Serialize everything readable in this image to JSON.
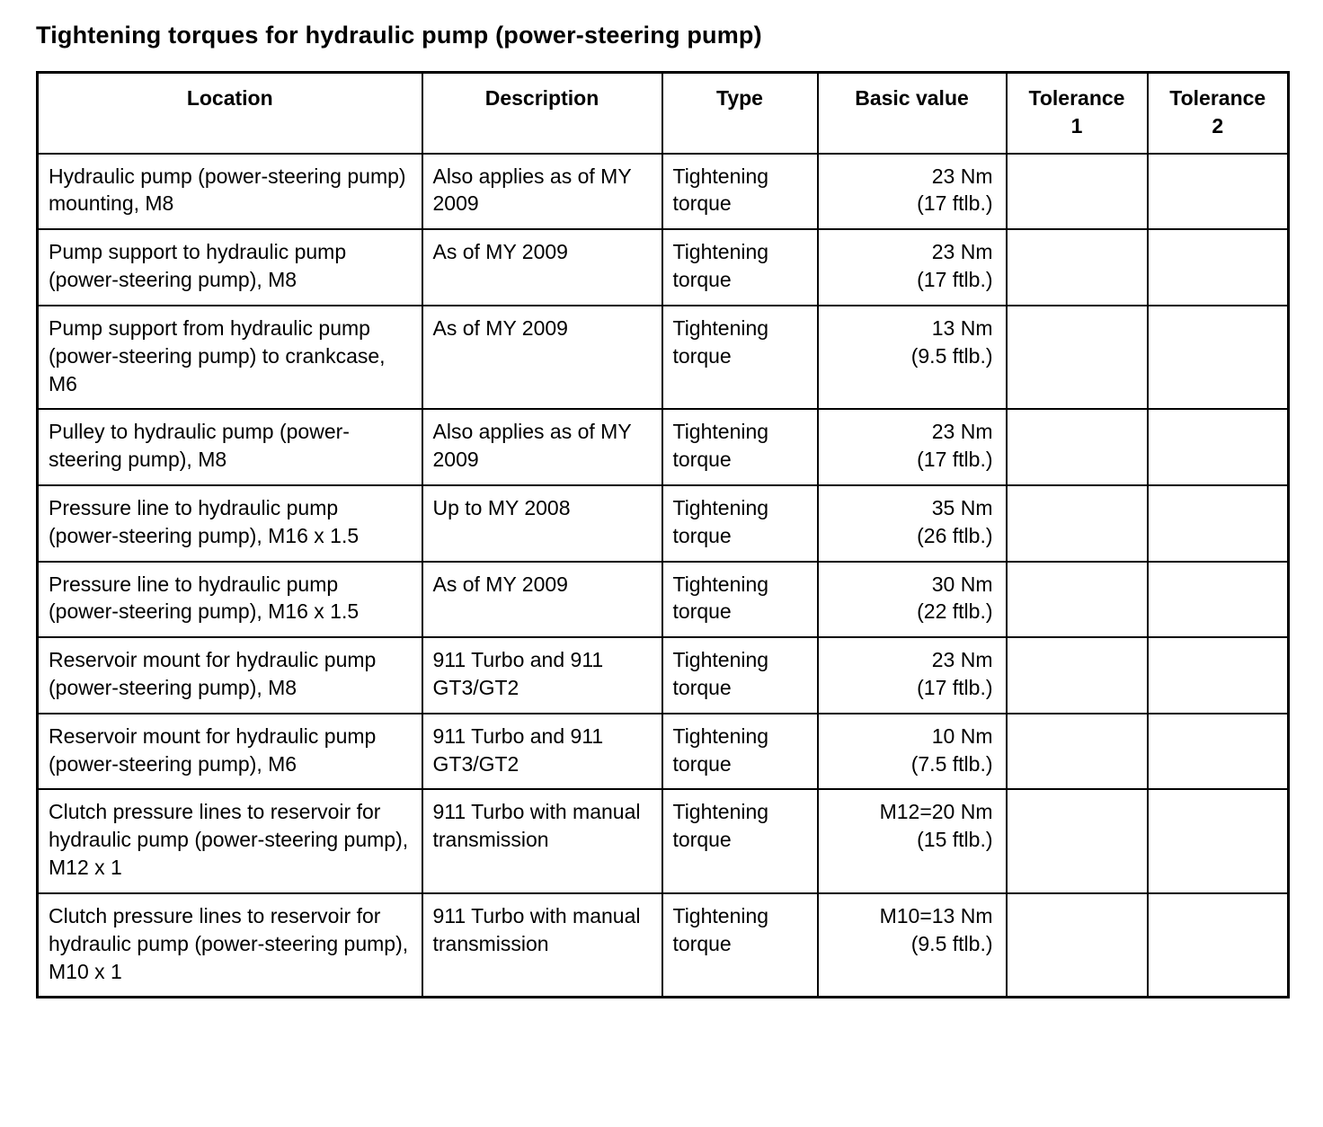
{
  "page": {
    "title": "Tightening torques for hydraulic pump (power-steering pump)"
  },
  "table": {
    "headers": [
      "Location",
      "Description",
      "Type",
      "Basic value",
      "Tolerance\n1",
      "Tolerance\n2"
    ],
    "rows": [
      {
        "location": "Hydraulic pump (power-steering pump) mounting, M8",
        "description": "Also applies as of MY 2009",
        "type": "Tightening torque",
        "basic_value": "23 Nm\n(17 ftlb.)",
        "tolerance1": "",
        "tolerance2": ""
      },
      {
        "location": "Pump support to hydraulic pump (power-steering pump), M8",
        "description": "As of MY 2009",
        "type": "Tightening torque",
        "basic_value": "23 Nm\n(17 ftlb.)",
        "tolerance1": "",
        "tolerance2": ""
      },
      {
        "location": "Pump support from hydraulic pump (power-steering pump) to crankcase, M6",
        "description": "As of MY 2009",
        "type": "Tightening torque",
        "basic_value": "13 Nm\n(9.5 ftlb.)",
        "tolerance1": "",
        "tolerance2": ""
      },
      {
        "location": "Pulley to hydraulic pump (power-steering pump), M8",
        "description": "Also applies as of MY 2009",
        "type": "Tightening torque",
        "basic_value": "23 Nm\n(17 ftlb.)",
        "tolerance1": "",
        "tolerance2": ""
      },
      {
        "location": "Pressure line to hydraulic pump (power-steering pump), M16 x 1.5",
        "description": "Up to MY 2008",
        "type": "Tightening torque",
        "basic_value": "35 Nm\n(26 ftlb.)",
        "tolerance1": "",
        "tolerance2": ""
      },
      {
        "location": "Pressure line to hydraulic pump (power-steering pump), M16 x 1.5",
        "description": "As of MY 2009",
        "type": "Tightening torque",
        "basic_value": "30 Nm\n(22 ftlb.)",
        "tolerance1": "",
        "tolerance2": ""
      },
      {
        "location": "Reservoir mount for hydraulic pump (power-steering pump), M8",
        "description": "911 Turbo and 911 GT3/GT2",
        "type": "Tightening torque",
        "basic_value": "23 Nm\n(17 ftlb.)",
        "tolerance1": "",
        "tolerance2": ""
      },
      {
        "location": "Reservoir mount for hydraulic pump (power-steering pump), M6",
        "description": "911 Turbo and 911 GT3/GT2",
        "type": "Tightening torque",
        "basic_value": "10 Nm\n(7.5 ftlb.)",
        "tolerance1": "",
        "tolerance2": ""
      },
      {
        "location": "Clutch pressure lines to reservoir for hydraulic pump (power-steering pump), M12 x 1",
        "description": "911 Turbo with manual transmission",
        "type": "Tightening torque",
        "basic_value": "M12=20 Nm\n(15 ftlb.)",
        "tolerance1": "",
        "tolerance2": ""
      },
      {
        "location": "Clutch pressure lines to reservoir for hydraulic pump (power-steering pump), M10 x 1",
        "description": "911 Turbo with manual transmission",
        "type": "Tightening torque",
        "basic_value": "M10=13 Nm\n(9.5 ftlb.)",
        "tolerance1": "",
        "tolerance2": ""
      }
    ]
  }
}
